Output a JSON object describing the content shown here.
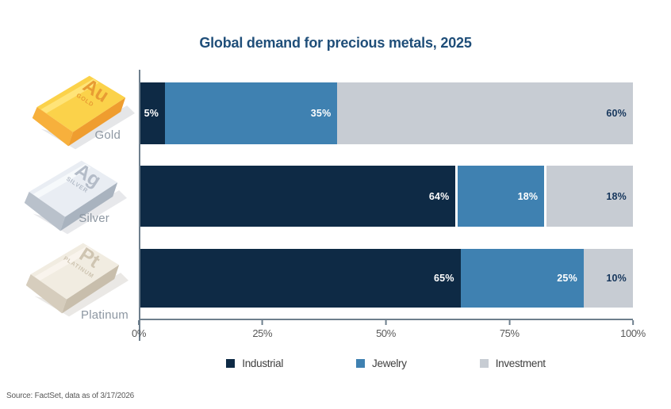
{
  "title": "Global demand for precious metals, 2025",
  "source": "Source: FactSet, data as of 3/17/2026",
  "colors": {
    "title_color": "#1f4e79",
    "axis_color": "#6e7f8d",
    "tick_label_color": "#595959",
    "legend_label_color": "#404040",
    "metal_label_color": "#8d97a2"
  },
  "chart_data": {
    "type": "bar",
    "orientation": "horizontal",
    "stacked": true,
    "title": "Global demand for precious metals, 2025",
    "categories": [
      "Gold",
      "Silver",
      "Platinum"
    ],
    "series": [
      {
        "name": "Industrial",
        "color": "#0e2a45",
        "value_label_color": "#ffffff",
        "values": [
          5,
          64,
          65
        ]
      },
      {
        "name": "Jewelry",
        "color": "#3f81b1",
        "value_label_color": "#ffffff",
        "values": [
          35,
          18,
          25
        ]
      },
      {
        "name": "Investment",
        "color": "#c7ccd3",
        "value_label_color": "#16365c",
        "values": [
          60,
          18,
          10
        ]
      }
    ],
    "value_suffix": "%",
    "xticks": [
      "0%",
      "25%",
      "50%",
      "75%",
      "100%"
    ],
    "xlim": [
      0,
      100
    ],
    "grid": false,
    "legend_position": "bottom",
    "separator_rows": [
      "Silver"
    ]
  },
  "metals": [
    {
      "label": "Gold",
      "symbol": "Au",
      "engraving": "GOLD",
      "colors": {
        "top": "#fbd24a",
        "highlight": "#ffe780",
        "side": "#f7b03c",
        "front": "#ef9d2f",
        "stamp": "#e89c33",
        "shadow": "#cfd2d6"
      }
    },
    {
      "label": "Silver",
      "symbol": "Ag",
      "engraving": "SILVER",
      "colors": {
        "top": "#e9edf3",
        "highlight": "#f8fafc",
        "side": "#b9c1cb",
        "front": "#a9b3bf",
        "stamp": "#b4bcc8",
        "shadow": "#d3d6da"
      }
    },
    {
      "label": "Platinum",
      "symbol": "Pt",
      "engraving": "PLATINUM",
      "colors": {
        "top": "#f1ece1",
        "highlight": "#faf6ee",
        "side": "#d6cdbd",
        "front": "#c8beac",
        "stamp": "#cfc5b2",
        "shadow": "#d8d5cf"
      }
    }
  ]
}
